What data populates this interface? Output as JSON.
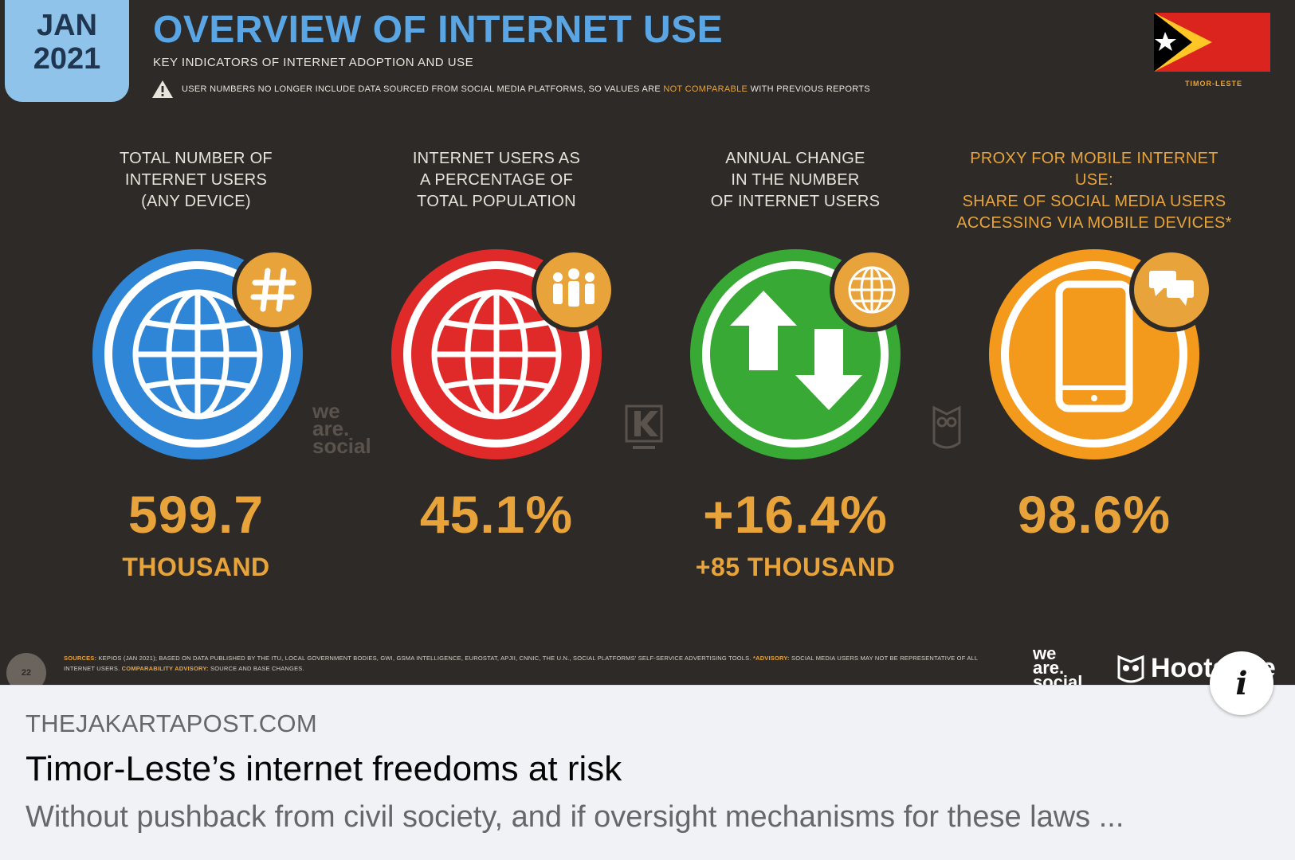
{
  "infographic": {
    "date_month": "JAN",
    "date_year": "2021",
    "title": "OVERVIEW OF INTERNET USE",
    "subtitle": "KEY INDICATORS OF INTERNET ADOPTION AND USE",
    "warning_text": "USER NUMBERS NO LONGER INCLUDE DATA SOURCED FROM SOCIAL MEDIA PLATFORMS, SO VALUES ARE",
    "warning_highlight": "NOT COMPARABLE",
    "warning_tail": "WITH PREVIOUS REPORTS",
    "country_label": "TIMOR-LESTE",
    "stats": [
      {
        "heading": "TOTAL NUMBER OF\nINTERNET USERS\n(ANY DEVICE)",
        "value": "599.7",
        "subvalue": "THOUSAND",
        "color": "#2f86d6",
        "badge_icon": "hash-icon",
        "main_icon": "globe-icon"
      },
      {
        "heading": "INTERNET USERS AS\nA PERCENTAGE OF\nTOTAL POPULATION",
        "value": "45.1%",
        "subvalue": "",
        "color": "#e02a2a",
        "badge_icon": "people-icon",
        "main_icon": "globe-icon"
      },
      {
        "heading": "ANNUAL CHANGE\nIN THE NUMBER\nOF INTERNET USERS",
        "value": "+16.4%",
        "subvalue": "+85 THOUSAND",
        "color": "#39a935",
        "badge_icon": "globe-icon",
        "main_icon": "up-down-arrows-icon"
      },
      {
        "heading": "PROXY FOR MOBILE INTERNET USE:\nSHARE OF SOCIAL MEDIA USERS\nACCESSING VIA MOBILE DEVICES*",
        "value": "98.6%",
        "subvalue": "",
        "color": "#f39a1d",
        "badge_icon": "chat-bubbles-icon",
        "main_icon": "smartphone-icon"
      }
    ],
    "watermark_we": "we",
    "watermark_are": "are.",
    "watermark_social": "social",
    "page_number": "22",
    "sources_label": "SOURCES:",
    "sources_text": "KEPIOS (JAN 2021); BASED ON DATA PUBLISHED BY THE ITU, LOCAL GOVERNMENT BODIES, GWI, GSMA INTELLIGENCE, EUROSTAT, APJII, CNNIC, THE U.N., SOCIAL PLATFORMS' SELF-SERVICE ADVERTISING TOOLS.",
    "advisory_label": "*ADVISORY:",
    "advisory_text": "SOCIAL MEDIA USERS MAY NOT BE REPRESENTATIVE OF ALL INTERNET USERS.",
    "comparability_label": "COMPARABILITY ADVISORY:",
    "comparability_text": "SOURCE AND BASE CHANGES.",
    "logo_we": "we",
    "logo_are": "are.",
    "logo_social": "social",
    "logo_hootsuite": "Hootsuite"
  },
  "link_preview": {
    "domain": "THEJAKARTAPOST.COM",
    "headline": "Timor-Leste’s internet freedoms at risk",
    "description": "Without pushback from civil society, and if oversight mechanisms for these laws ...",
    "info_icon": "info-icon",
    "info_glyph": "i"
  },
  "colors": {
    "background": "#2e2a27",
    "accent_orange": "#e8a43a",
    "title_blue": "#5aa5e3",
    "badge_blue": "#8fc3ea"
  }
}
